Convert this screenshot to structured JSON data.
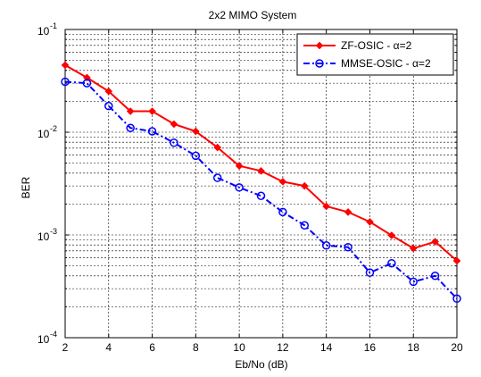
{
  "chart_data": {
    "type": "line",
    "title": "2x2 MIMO System",
    "xlabel": "Eb/No (dB)",
    "ylabel": "BER",
    "x_scale": "linear",
    "y_scale": "log",
    "xlim": [
      2,
      20
    ],
    "ylim": [
      0.0001,
      0.1
    ],
    "x_ticks": [
      "2",
      "4",
      "6",
      "8",
      "10",
      "12",
      "14",
      "16",
      "18",
      "20"
    ],
    "y_ticks": [
      {
        "base": "10",
        "exp": "-4"
      },
      {
        "base": "10",
        "exp": "-3"
      },
      {
        "base": "10",
        "exp": "-2"
      },
      {
        "base": "10",
        "exp": "-1"
      }
    ],
    "grid": true,
    "legend_position": "top-right",
    "x": [
      2,
      3,
      4,
      5,
      6,
      7,
      8,
      9,
      10,
      11,
      12,
      13,
      14,
      15,
      16,
      17,
      18,
      19,
      20
    ],
    "series": [
      {
        "name": "ZF-OSIC - α=2",
        "color": "#ff0000",
        "line_style": "solid",
        "marker": "diamond",
        "values": [
          0.045,
          0.034,
          0.025,
          0.016,
          0.016,
          0.012,
          0.0102,
          0.0071,
          0.0047,
          0.0042,
          0.0033,
          0.003,
          0.0019,
          0.00167,
          0.00134,
          0.00099,
          0.00074,
          0.00086,
          0.00056
        ]
      },
      {
        "name": "MMSE-OSIC - α=2",
        "color": "#0000ff",
        "line_style": "dashdot",
        "marker": "circle",
        "values": [
          0.031,
          0.03,
          0.018,
          0.011,
          0.0102,
          0.0079,
          0.0059,
          0.0036,
          0.0029,
          0.0024,
          0.00167,
          0.00124,
          0.00079,
          0.00076,
          0.00043,
          0.00053,
          0.00035,
          0.0004,
          0.00024
        ]
      }
    ]
  }
}
